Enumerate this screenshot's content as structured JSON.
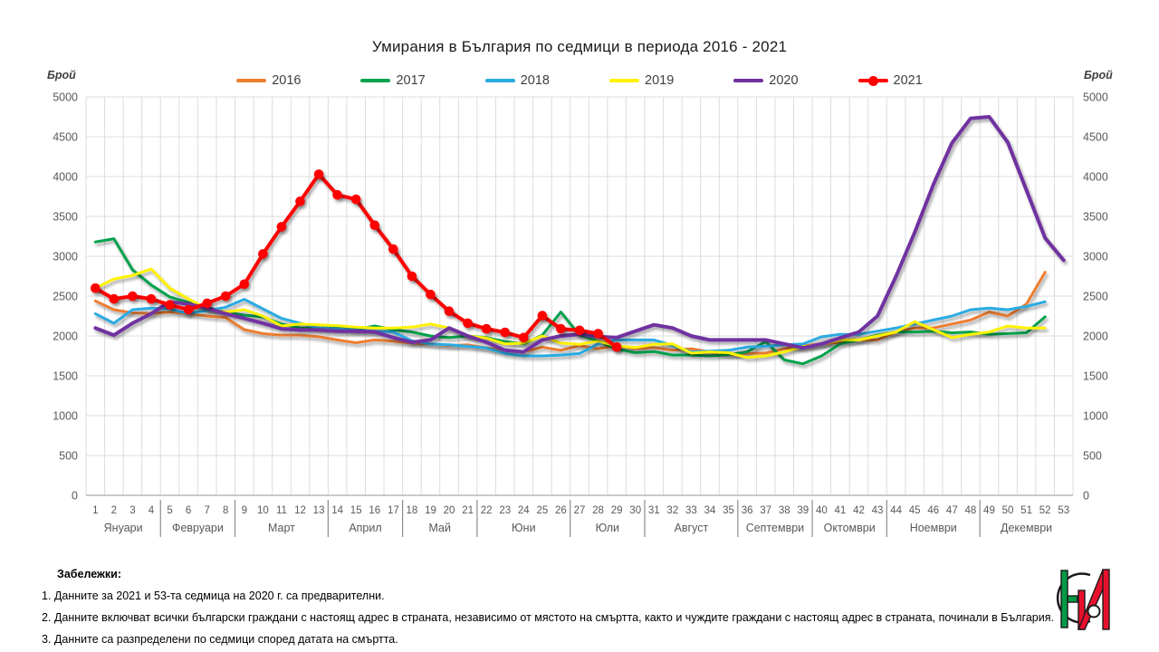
{
  "title": "Умирания в България по седмици в периода 2016 - 2021",
  "axis": {
    "y_label_left": "Брой",
    "y_label_right": "Брой"
  },
  "chart_data": {
    "type": "line",
    "title": "Умирания в България по седмици в периода 2016 - 2021",
    "ylabel": "Брой",
    "ylim": [
      0,
      5000
    ],
    "ytick_step": 500,
    "grid": true,
    "legend_position": "top",
    "y_tick_labels": [
      "0",
      "500",
      "1000",
      "1500",
      "2000",
      "2500",
      "3000",
      "3500",
      "4000",
      "4500",
      "5000"
    ],
    "week_labels": [
      "1",
      "2",
      "3",
      "4",
      "5",
      "6",
      "7",
      "8",
      "9",
      "10",
      "11",
      "12",
      "13",
      "14",
      "15",
      "16",
      "17",
      "18",
      "19",
      "20",
      "21",
      "22",
      "23",
      "24",
      "25",
      "26",
      "27",
      "28",
      "29",
      "30",
      "31",
      "32",
      "33",
      "34",
      "35",
      "36",
      "37",
      "38",
      "39",
      "40",
      "41",
      "42",
      "43",
      "44",
      "45",
      "46",
      "47",
      "48",
      "49",
      "50",
      "51",
      "52",
      "53"
    ],
    "months": [
      {
        "label": "Януари",
        "from": 1,
        "to": 4
      },
      {
        "label": "Февруари",
        "from": 5,
        "to": 8
      },
      {
        "label": "Март",
        "from": 9,
        "to": 13
      },
      {
        "label": "Април",
        "from": 14,
        "to": 17
      },
      {
        "label": "Май",
        "from": 18,
        "to": 21
      },
      {
        "label": "Юни",
        "from": 22,
        "to": 26
      },
      {
        "label": "Юли",
        "from": 27,
        "to": 30
      },
      {
        "label": "Август",
        "from": 31,
        "to": 35
      },
      {
        "label": "Септември",
        "from": 36,
        "to": 39
      },
      {
        "label": "Октомври",
        "from": 40,
        "to": 43
      },
      {
        "label": "Ноември",
        "from": 44,
        "to": 48
      },
      {
        "label": "Декември",
        "from": 49,
        "to": 53
      }
    ],
    "series": [
      {
        "name": "2016",
        "color": "#ED7D31",
        "line_width": 3,
        "marker": false,
        "values": [
          2440,
          2330,
          2290,
          2280,
          2300,
          2280,
          2250,
          2230,
          2080,
          2030,
          2010,
          2010,
          1990,
          1950,
          1915,
          1950,
          1935,
          1910,
          1900,
          1880,
          1890,
          1850,
          1820,
          1800,
          1860,
          1820,
          1880,
          1840,
          1875,
          1840,
          1855,
          1820,
          1840,
          1800,
          1765,
          1780,
          1785,
          1840,
          1875,
          1900,
          1920,
          1950,
          1950,
          2050,
          2100,
          2100,
          2150,
          2200,
          2300,
          2250,
          2400,
          2800
        ]
      },
      {
        "name": "2017",
        "color": "#00A14B",
        "line_width": 3,
        "marker": false,
        "values": [
          3180,
          3220,
          2830,
          2640,
          2490,
          2420,
          2360,
          2300,
          2260,
          2240,
          2150,
          2100,
          2100,
          2100,
          2080,
          2125,
          2080,
          2050,
          2000,
          1980,
          2000,
          1980,
          1930,
          1900,
          2010,
          2300,
          2010,
          1935,
          1840,
          1790,
          1805,
          1760,
          1760,
          1750,
          1765,
          1800,
          1930,
          1700,
          1650,
          1750,
          1900,
          1950,
          2010,
          2050,
          2050,
          2060,
          2040,
          2050,
          2020,
          2030,
          2040,
          2240
        ]
      },
      {
        "name": "2018",
        "color": "#29ABE2",
        "line_width": 3,
        "marker": false,
        "values": [
          2280,
          2160,
          2330,
          2350,
          2340,
          2280,
          2320,
          2360,
          2460,
          2340,
          2220,
          2160,
          2100,
          2090,
          2070,
          2060,
          2050,
          1940,
          1900,
          1890,
          1870,
          1850,
          1780,
          1750,
          1750,
          1760,
          1780,
          1900,
          1950,
          1950,
          1950,
          1880,
          1800,
          1810,
          1820,
          1860,
          1870,
          1890,
          1900,
          1990,
          2020,
          2020,
          2060,
          2100,
          2150,
          2200,
          2250,
          2330,
          2350,
          2330,
          2370,
          2430
        ]
      },
      {
        "name": "2019",
        "color": "#FFF200",
        "line_width": 3,
        "marker": false,
        "values": [
          2600,
          2715,
          2760,
          2840,
          2600,
          2465,
          2340,
          2300,
          2330,
          2250,
          2125,
          2150,
          2140,
          2130,
          2110,
          2100,
          2100,
          2110,
          2150,
          2100,
          2000,
          1975,
          1900,
          1910,
          2000,
          1910,
          1895,
          1935,
          1875,
          1855,
          1895,
          1900,
          1785,
          1800,
          1790,
          1730,
          1750,
          1800,
          1865,
          1900,
          1950,
          1950,
          2000,
          2050,
          2180,
          2080,
          1980,
          2020,
          2050,
          2125,
          2100,
          2100
        ]
      },
      {
        "name": "2020",
        "color": "#7030A0",
        "line_width": 4,
        "marker": false,
        "values": [
          2100,
          2010,
          2160,
          2280,
          2430,
          2400,
          2350,
          2280,
          2220,
          2160,
          2090,
          2075,
          2075,
          2060,
          2060,
          2050,
          1980,
          1920,
          1950,
          2100,
          2000,
          1920,
          1820,
          1800,
          1950,
          2000,
          2020,
          1990,
          1980,
          2060,
          2140,
          2100,
          2000,
          1950,
          1950,
          1950,
          1950,
          1900,
          1850,
          1900,
          1975,
          2050,
          2250,
          2750,
          3300,
          3900,
          4420,
          4730,
          4750,
          4430,
          3830,
          3230,
          2950
        ]
      },
      {
        "name": "2021",
        "color": "#FF0000",
        "line_width": 4,
        "marker": true,
        "values": [
          2600,
          2465,
          2500,
          2465,
          2390,
          2330,
          2410,
          2500,
          2650,
          3030,
          3370,
          3690,
          4030,
          3770,
          3715,
          3390,
          3090,
          2750,
          2520,
          2310,
          2160,
          2090,
          2045,
          1980,
          2255,
          2090,
          2070,
          2030,
          1860
        ]
      }
    ]
  },
  "notes": {
    "heading": "Забележки:",
    "items": [
      "1. Данните за 2021 и 53-та седмица на 2020 г. са предварителни.",
      "2. Данните включват всички български граждани с настоящ адрес в страната, независимо от мястото на смъртта, както и чуждите граждани с настоящ адрес в страната, починали в България.",
      "3. Данните са разпределени по седмици според датата на смъртта."
    ]
  },
  "logo": {
    "title": "НСИ"
  }
}
